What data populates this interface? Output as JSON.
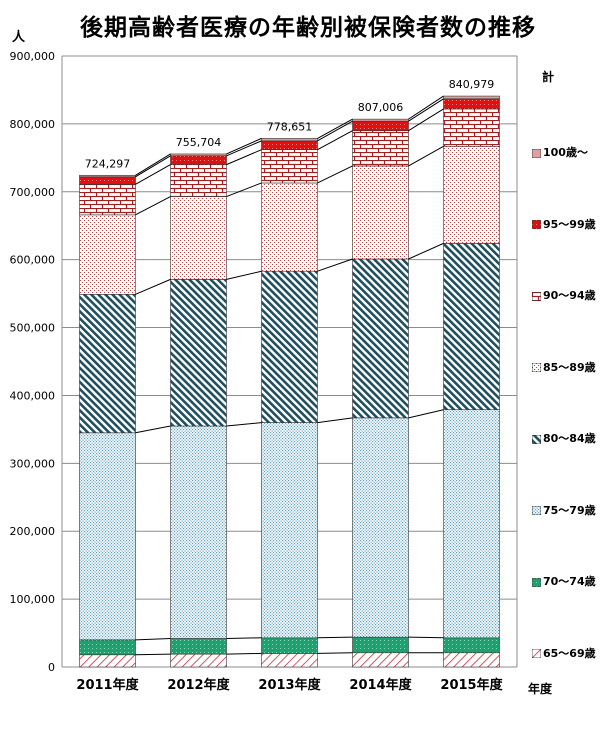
{
  "title": "後期高齢者医療の年齢別被保険者数の推移",
  "y_unit": "人",
  "x_unit": "年度",
  "legend_title": "計",
  "colors": {
    "65-69": "#c03040",
    "70-74": "#20a070",
    "75-79": "#5aa0c8",
    "80-84": "#1f4f5f",
    "85-89": "#c04040",
    "90-94": "#a02020",
    "95-99": "#e01010",
    "100+": "#e0a0a0"
  },
  "chart_data": {
    "type": "bar",
    "stacked": true,
    "categories": [
      "2011年度",
      "2012年度",
      "2013年度",
      "2014年度",
      "2015年度"
    ],
    "series": [
      {
        "name": "65〜69歳",
        "key": "65-69",
        "values": [
          18000,
          19000,
          20000,
          21000,
          21000
        ]
      },
      {
        "name": "70〜74歳",
        "key": "70-74",
        "values": [
          22000,
          23000,
          23000,
          23000,
          22000
        ]
      },
      {
        "name": "75〜79歳",
        "key": "75-79",
        "values": [
          305000,
          313000,
          317000,
          323000,
          336000
        ]
      },
      {
        "name": "80〜84歳",
        "key": "80-84",
        "values": [
          204000,
          216000,
          223000,
          234000,
          245000
        ]
      },
      {
        "name": "85〜89歳",
        "key": "85-89",
        "values": [
          117000,
          122000,
          130000,
          137000,
          143000
        ]
      },
      {
        "name": "90〜94歳",
        "key": "90-94",
        "values": [
          45000,
          47000,
          49000,
          52000,
          55000
        ]
      },
      {
        "name": "95〜99歳",
        "key": "95-99",
        "values": [
          11000,
          13000,
          13000,
          14000,
          15000
        ]
      },
      {
        "name": "100歳〜",
        "key": "100+",
        "values": [
          2297,
          2704,
          3651,
          3006,
          3979
        ]
      }
    ],
    "totals": [
      724297,
      755704,
      778651,
      807006,
      840979
    ],
    "total_labels": [
      "724,297",
      "755,704",
      "778,651",
      "807,006",
      "840,979"
    ],
    "ylim": [
      0,
      900000
    ],
    "yticks": [
      "0",
      "100,000",
      "200,000",
      "300,000",
      "400,000",
      "500,000",
      "600,000",
      "700,000",
      "800,000",
      "900,000"
    ],
    "grid": true,
    "legend_position": "right"
  }
}
